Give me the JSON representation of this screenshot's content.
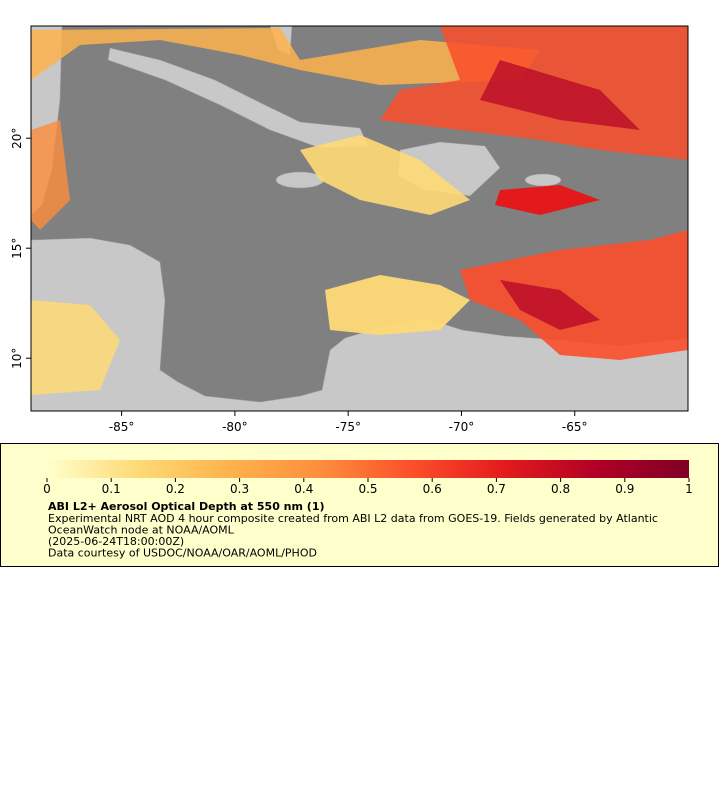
{
  "chart_data": {
    "type": "map",
    "xlim": [
      -89,
      -60
    ],
    "ylim": [
      7.6,
      25.1
    ],
    "xticks": [
      {
        "value": -85,
        "label": "-85°"
      },
      {
        "value": -80,
        "label": "-80°"
      },
      {
        "value": -75,
        "label": "-75°"
      },
      {
        "value": -70,
        "label": "-70°"
      },
      {
        "value": -65,
        "label": "-65°"
      }
    ],
    "yticks": [
      {
        "value": 20,
        "label": "20°"
      },
      {
        "value": 15,
        "label": "15°"
      },
      {
        "value": 10,
        "label": "10°"
      }
    ],
    "colorbar": {
      "clim": [
        0,
        1
      ],
      "ticks": [
        0,
        0.1,
        0.2,
        0.3,
        0.4,
        0.5,
        0.6,
        0.7,
        0.8,
        0.9,
        1
      ],
      "colormap": [
        "#ffffcc",
        "#fed976",
        "#feb24c",
        "#fd8d3c",
        "#fc4e2a",
        "#e31a1c",
        "#b10026",
        "#800026"
      ]
    },
    "title": "ABI L2+ Aerosol Optical Depth at 550 nm (1)",
    "description": [
      "Experimental NRT AOD 4 hour composite created from ABI L2 data from GOES-19. Fields generated by Atlantic",
      "OceanWatch node at NOAA/AOML",
      "(2025-06-24T18:00:00Z)",
      "Data courtesy of USDOC/NOAA/OAR/AOML/PHOD"
    ]
  }
}
